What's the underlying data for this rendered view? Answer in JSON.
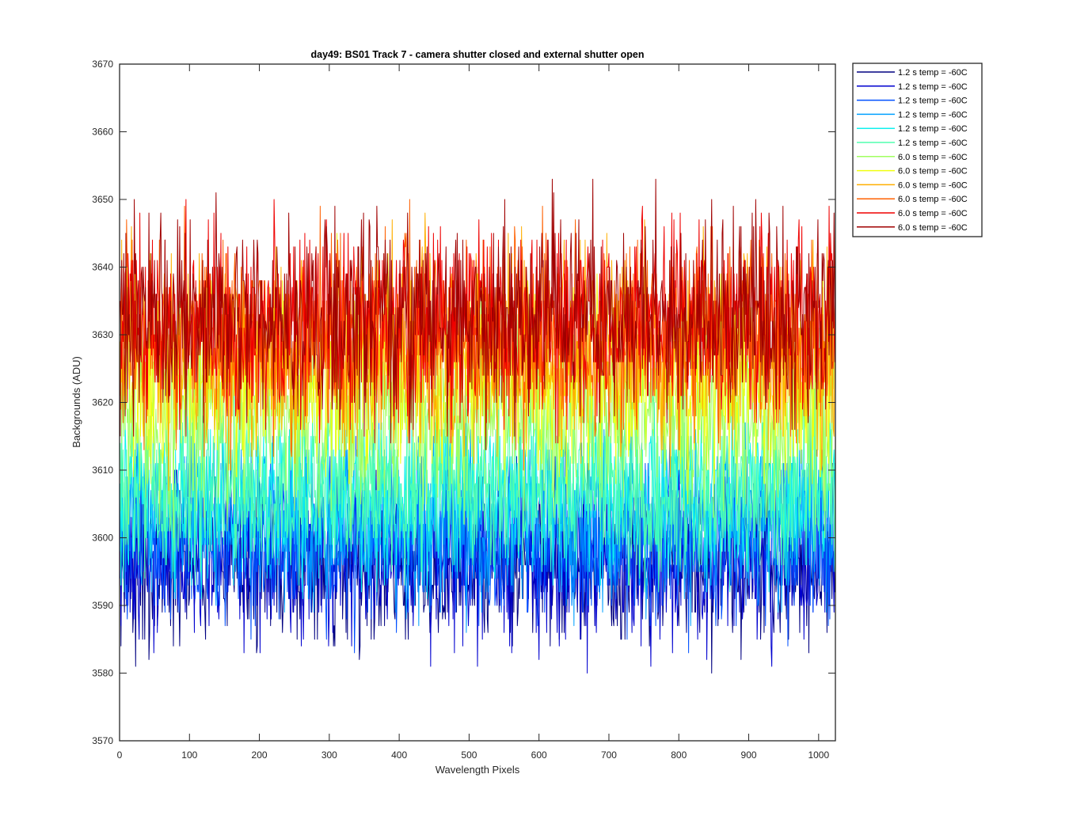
{
  "chart_data": {
    "type": "line",
    "title": "day49: BS01  Track 7 - camera shutter closed and external shutter open",
    "xlabel": "Wavelength Pixels",
    "ylabel": "Backgrounds (ADU)",
    "xlim": [
      0,
      1024
    ],
    "ylim": [
      3570,
      3670
    ],
    "x_ticks": [
      0,
      100,
      200,
      300,
      400,
      500,
      600,
      700,
      800,
      900,
      1000
    ],
    "y_ticks": [
      3570,
      3580,
      3590,
      3600,
      3610,
      3620,
      3630,
      3640,
      3650,
      3660,
      3670
    ],
    "grid": false,
    "legend_position": "outside-top-right",
    "x_range": [
      1,
      1024
    ],
    "series": [
      {
        "name": "1.2 s temp = -60C",
        "color": "#000080",
        "mean": 3596,
        "spread": 6,
        "min": 3580,
        "max": 3612
      },
      {
        "name": "1.2 s temp = -60C",
        "color": "#0000cf",
        "mean": 3597,
        "spread": 6,
        "min": 3575,
        "max": 3613
      },
      {
        "name": "1.2 s temp = -60C",
        "color": "#0050ff",
        "mean": 3600,
        "spread": 6,
        "min": 3578,
        "max": 3615
      },
      {
        "name": "1.2 s temp = -60C",
        "color": "#00a0ff",
        "mean": 3603,
        "spread": 6,
        "min": 3579,
        "max": 3618
      },
      {
        "name": "1.2 s temp = -60C",
        "color": "#10f0ee",
        "mean": 3606,
        "spread": 6,
        "min": 3585,
        "max": 3620
      },
      {
        "name": "1.2 s temp = -60C",
        "color": "#50ffaf",
        "mean": 3607,
        "spread": 6,
        "min": 3581,
        "max": 3622
      },
      {
        "name": "6.0 s temp = -60C",
        "color": "#a0ff60",
        "mean": 3618,
        "spread": 7,
        "min": 3600,
        "max": 3638
      },
      {
        "name": "6.0 s temp = -60C",
        "color": "#f0ff10",
        "mean": 3624,
        "spread": 7,
        "min": 3605,
        "max": 3653
      },
      {
        "name": "6.0 s temp = -60C",
        "color": "#ffaf00",
        "mean": 3628,
        "spread": 7,
        "min": 3592,
        "max": 3656
      },
      {
        "name": "6.0 s temp = -60C",
        "color": "#ff6000",
        "mean": 3630,
        "spread": 7,
        "min": 3600,
        "max": 3658
      },
      {
        "name": "6.0 s temp = -60C",
        "color": "#ef0000",
        "mean": 3632,
        "spread": 7,
        "min": 3598,
        "max": 3662
      },
      {
        "name": "6.0 s temp = -60C",
        "color": "#a00000",
        "mean": 3633,
        "spread": 7,
        "min": 3600,
        "max": 3657
      }
    ]
  }
}
